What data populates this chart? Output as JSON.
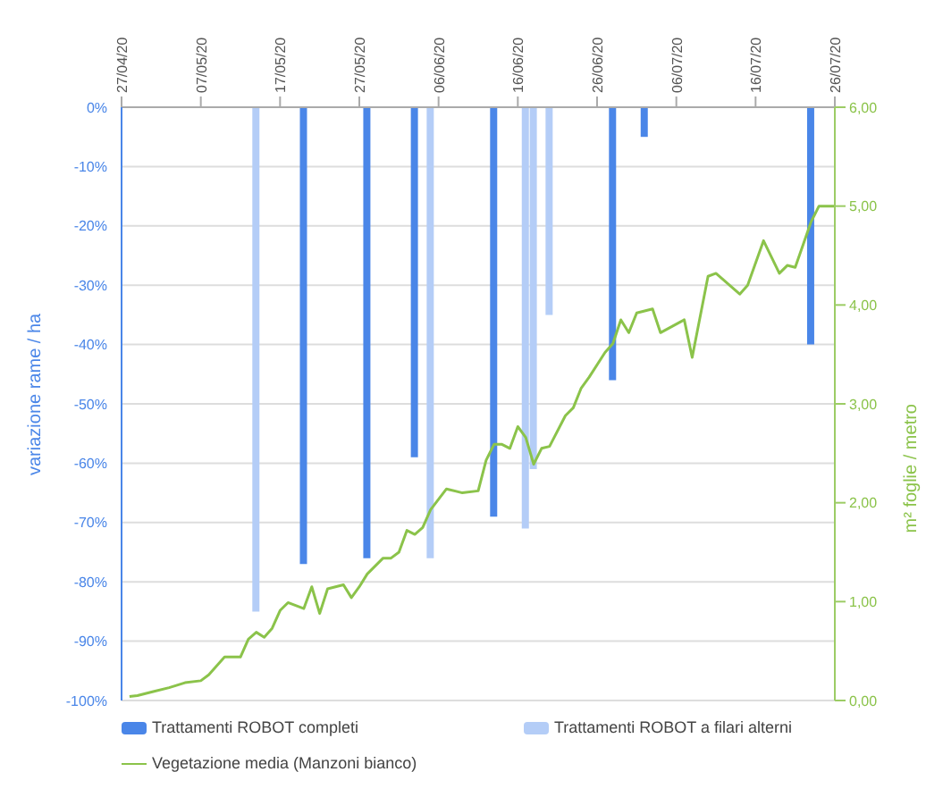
{
  "chart_data": {
    "type": "bar",
    "ylabel": "variazione rame / ha",
    "y2label": "m² foglie / metro",
    "xlim": [
      "--04-27",
      "--07-26"
    ],
    "xticks": [
      {
        "value": "--04-27",
        "label": "27/04/20"
      },
      {
        "value": "--05-07",
        "label": "07/05/20"
      },
      {
        "value": "--05-17",
        "label": "17/05/20"
      },
      {
        "value": "--05-27",
        "label": "27/05/20"
      },
      {
        "value": "--06-06",
        "label": "06/06/20"
      },
      {
        "value": "--06-16",
        "label": "16/06/20"
      },
      {
        "value": "--06-26",
        "label": "26/06/20"
      },
      {
        "value": "--07-06",
        "label": "06/07/20"
      },
      {
        "value": "--07-16",
        "label": "16/07/20"
      },
      {
        "value": "--07-26",
        "label": "26/07/20"
      }
    ],
    "ylim": [
      -100,
      0
    ],
    "yticks": [
      {
        "value": -100,
        "label": "-100%"
      },
      {
        "value": -90,
        "label": "-90%"
      },
      {
        "value": -80,
        "label": "-80%"
      },
      {
        "value": -70,
        "label": "-70%"
      },
      {
        "value": -60,
        "label": "-60%"
      },
      {
        "value": -50,
        "label": "-50%"
      },
      {
        "value": -40,
        "label": "-40%"
      },
      {
        "value": -30,
        "label": "-30%"
      },
      {
        "value": -20,
        "label": "-20%"
      },
      {
        "value": -10,
        "label": "-10%"
      },
      {
        "value": 0,
        "label": "0%"
      }
    ],
    "y2lim": [
      0,
      6
    ],
    "y2ticks": [
      {
        "value": 0,
        "label": "0,00"
      },
      {
        "value": 1,
        "label": "1,00"
      },
      {
        "value": 2,
        "label": "2,00"
      },
      {
        "value": 3,
        "label": "3,00"
      },
      {
        "value": 4,
        "label": "4,00"
      },
      {
        "value": 5,
        "label": "5,00"
      },
      {
        "value": 6,
        "label": "6,00"
      }
    ],
    "grid": "y",
    "legend": "bottom",
    "series": [
      {
        "name": "Trattamenti ROBOT completi",
        "color": "#4a86e8",
        "x": [
          "--05-20",
          "--05-28",
          "--06-03",
          "--06-13",
          "--06-28",
          "--07-02",
          "--07-23"
        ],
        "values": [
          -77,
          -76,
          -59,
          -69,
          -46,
          -5,
          -40
        ]
      },
      {
        "name": "Trattamenti ROBOT a filari alterni",
        "color": "#b4cdf7",
        "x": [
          "--05-14",
          "--06-05",
          "--06-17",
          "--06-18",
          "--06-20"
        ],
        "values": [
          -85,
          -76,
          -71,
          -61,
          -35
        ]
      },
      {
        "name": "Vegetazione media (Manzoni bianco)",
        "type": "line",
        "axis": "y2",
        "color": "#8bc34a",
        "x": [
          "--04-28",
          "--04-29",
          "--05-01",
          "--05-03",
          "--05-05",
          "--05-07",
          "--05-08",
          "--05-10",
          "--05-12",
          "--05-13",
          "--05-14",
          "--05-15",
          "--05-16",
          "--05-17",
          "--05-18",
          "--05-20",
          "--05-21",
          "--05-22",
          "--05-23",
          "--05-25",
          "--05-26",
          "--05-27",
          "--05-28",
          "--05-30",
          "--05-31",
          "--06-01",
          "--06-02",
          "--06-03",
          "--06-04",
          "--06-05",
          "--06-07",
          "--06-09",
          "--06-11",
          "--06-12",
          "--06-13",
          "--06-14",
          "--06-15",
          "--06-16",
          "--06-17",
          "--06-18",
          "--06-19",
          "--06-20",
          "--06-22",
          "--06-23",
          "--06-24",
          "--06-25",
          "--06-27",
          "--06-28",
          "--06-29",
          "--06-30",
          "--07-01",
          "--07-03",
          "--07-04",
          "--07-07",
          "--07-08",
          "--07-10",
          "--07-11",
          "--07-14",
          "--07-15",
          "--07-17",
          "--07-19",
          "--07-20",
          "--07-21",
          "--07-23",
          "--07-24",
          "--07-26"
        ],
        "values": [
          0.04,
          0.05,
          0.09,
          0.13,
          0.18,
          0.2,
          0.26,
          0.44,
          0.44,
          0.62,
          0.69,
          0.64,
          0.73,
          0.91,
          0.99,
          0.93,
          1.15,
          0.88,
          1.13,
          1.17,
          1.04,
          1.15,
          1.28,
          1.44,
          1.44,
          1.5,
          1.72,
          1.68,
          1.75,
          1.93,
          2.14,
          2.1,
          2.12,
          2.43,
          2.59,
          2.59,
          2.55,
          2.77,
          2.66,
          2.39,
          2.55,
          2.57,
          2.88,
          2.96,
          3.16,
          3.27,
          3.52,
          3.61,
          3.85,
          3.72,
          3.92,
          3.96,
          3.72,
          3.85,
          3.47,
          4.29,
          4.32,
          4.11,
          4.2,
          4.65,
          4.32,
          4.4,
          4.38,
          4.84,
          5.0,
          5.0
        ]
      }
    ]
  }
}
